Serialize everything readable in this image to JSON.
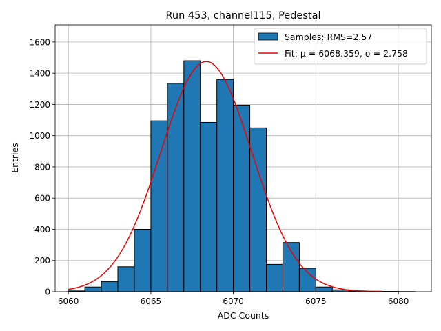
{
  "chart_data": {
    "type": "bar",
    "title": "Run 453, channel115, Pedestal",
    "xlabel": "ADC Counts",
    "ylabel": "Entries",
    "xlim": [
      6059.2,
      6082.0
    ],
    "ylim": [
      0,
      1710
    ],
    "xticks": [
      6060,
      6065,
      6070,
      6075,
      6080
    ],
    "yticks": [
      0,
      200,
      400,
      600,
      800,
      1000,
      1200,
      1400,
      1600
    ],
    "grid": true,
    "legend_position": "top-right",
    "histogram": {
      "name": "Samples: RMS=2.57",
      "bin_width": 1,
      "bin_lefts": [
        6060,
        6061,
        6062,
        6063,
        6064,
        6065,
        6066,
        6067,
        6068,
        6069,
        6070,
        6071,
        6072,
        6073,
        6074,
        6075,
        6076,
        6077,
        6078,
        6079,
        6080
      ],
      "values": [
        5,
        30,
        65,
        160,
        400,
        1095,
        1335,
        1480,
        1085,
        1360,
        1195,
        1050,
        175,
        315,
        150,
        30,
        12,
        5,
        3,
        2,
        1
      ],
      "color": "#1f77b4"
    },
    "fit": {
      "name": "Fit: μ = 6068.359, σ = 2.758",
      "mu": 6068.359,
      "sigma": 2.758,
      "amplitude": 1475,
      "x_range": [
        6060,
        6079
      ],
      "color": "#ee0000"
    }
  }
}
